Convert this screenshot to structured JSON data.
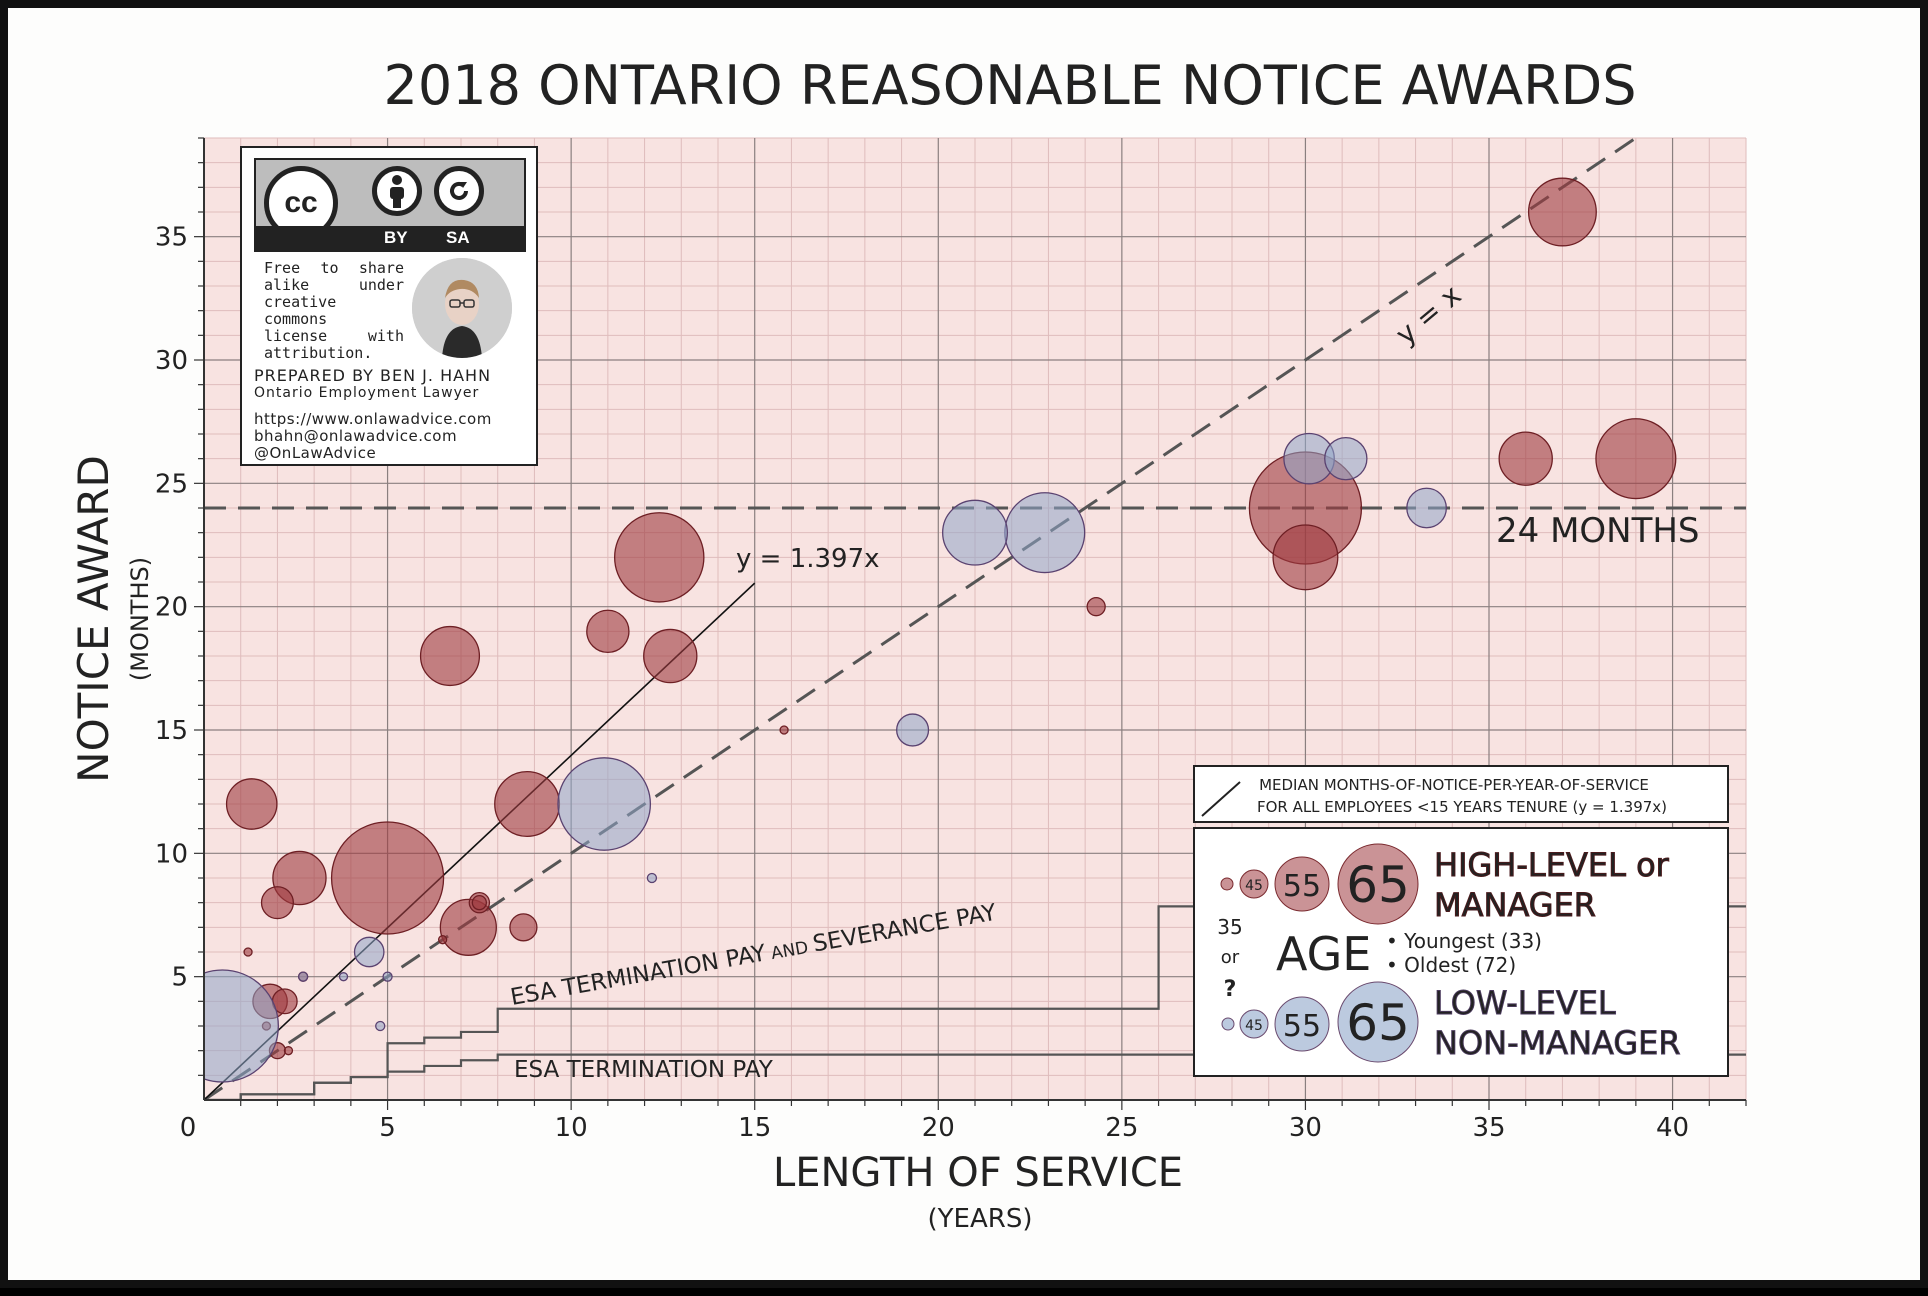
{
  "title": "2018 ONTARIO REASONABLE NOTICE AWARDS",
  "license": {
    "cc_label": "cc",
    "by_label": "BY",
    "sa_label": "SA",
    "notice_lines": [
      "Free to share",
      "alike under",
      "creative",
      "commons",
      "license with",
      "attribution."
    ],
    "prepared_by": "PREPARED BY BEN J. HAHN",
    "role": "Ontario Employment Lawyer",
    "website": "https://www.onlawadvice.com",
    "email": "bhahn@onlawadvice.com",
    "handle": "@OnLawAdvice"
  },
  "annotations": {
    "yx": "y = x",
    "y1397": "y = 1.397x",
    "months24": "24 MONTHS",
    "esa_sev_a": "ESA TERMINATION PAY",
    "esa_sev_b": " AND ",
    "esa_sev_c": "SEVERANCE PAY",
    "esa_term": "ESA TERMINATION PAY"
  },
  "median_legend": {
    "line1": "MEDIAN MONTHS-OF-NOTICE-PER-YEAR-OF-SERVICE",
    "line2": "FOR ALL EMPLOYEES <15 YEARS TENURE (y = 1.397x)"
  },
  "legend": {
    "high_line1": "HIGH-LEVEL or",
    "high_line2": "MANAGER",
    "low_line1": "LOW-LEVEL",
    "low_line2": "NON-MANAGER",
    "age_label": "AGE",
    "youngest": "• Youngest (33)",
    "oldest": "• Oldest (72)",
    "q_35": "35",
    "q_or": "or",
    "q_mark": "?",
    "sizes": [
      "35",
      "45",
      "55",
      "65"
    ]
  },
  "colors": {
    "high": "#9e3a3f",
    "low": "#8fa6c9",
    "plot_bg": "#f8e3e1",
    "grid_minor": "#dfbcbc",
    "grid_major": "#8a7f7f"
  },
  "chart_data": {
    "type": "scatter",
    "title": "2018 ONTARIO REASONABLE NOTICE AWARDS",
    "xlabel": "LENGTH OF SERVICE",
    "xlabel_units": "(YEARS)",
    "ylabel": "NOTICE AWARD",
    "ylabel_units": "(MONTHS)",
    "xlim": [
      0,
      42
    ],
    "ylim": [
      0,
      39
    ],
    "xticks": [
      0,
      5,
      10,
      15,
      20,
      25,
      30,
      35,
      40
    ],
    "yticks": [
      5,
      10,
      15,
      20,
      25,
      30,
      35
    ],
    "reference_lines": [
      {
        "name": "y = x",
        "slope": 1,
        "style": "dashed"
      },
      {
        "name": "y = 1.397x",
        "slope": 1.397,
        "x_max": 15,
        "style": "solid"
      },
      {
        "name": "24 MONTHS",
        "y": 24,
        "style": "dashed"
      }
    ],
    "step_series": [
      {
        "name": "ESA TERMINATION PAY AND SEVERANCE PAY",
        "points": [
          [
            0,
            0
          ],
          [
            1,
            0.23
          ],
          [
            3,
            0.7
          ],
          [
            4,
            0.93
          ],
          [
            5,
            1.15
          ],
          [
            5,
            2.3
          ],
          [
            6,
            2.53
          ],
          [
            7,
            2.76
          ],
          [
            8,
            3.7
          ],
          [
            26,
            7.85
          ],
          [
            42,
            7.85
          ]
        ]
      },
      {
        "name": "ESA TERMINATION PAY",
        "points": [
          [
            0,
            0
          ],
          [
            1,
            0.23
          ],
          [
            3,
            0.7
          ],
          [
            4,
            0.93
          ],
          [
            5,
            1.15
          ],
          [
            6,
            1.38
          ],
          [
            7,
            1.61
          ],
          [
            8,
            1.84
          ],
          [
            42,
            1.84
          ]
        ]
      }
    ],
    "series": [
      {
        "name": "HIGH-LEVEL or MANAGER",
        "points": [
          {
            "x": 1.3,
            "y": 12,
            "age": 52
          },
          {
            "x": 2.0,
            "y": 8,
            "age": 45
          },
          {
            "x": 2.6,
            "y": 9,
            "age": 53
          },
          {
            "x": 1.8,
            "y": 4,
            "age": 46
          },
          {
            "x": 2.2,
            "y": 4,
            "age": 42
          },
          {
            "x": 1.7,
            "y": 3,
            "age": 33
          },
          {
            "x": 2.0,
            "y": 2,
            "age": 38
          },
          {
            "x": 1.2,
            "y": 6,
            "age": 33
          },
          {
            "x": 2.7,
            "y": 5,
            "age": 34
          },
          {
            "x": 2.3,
            "y": 2,
            "age": 33
          },
          {
            "x": 5.0,
            "y": 9,
            "age": 72
          },
          {
            "x": 6.7,
            "y": 18,
            "age": 55
          },
          {
            "x": 7.2,
            "y": 7,
            "age": 54
          },
          {
            "x": 7.5,
            "y": 8,
            "age": 40
          },
          {
            "x": 7.5,
            "y": 8,
            "age": 37
          },
          {
            "x": 6.5,
            "y": 6.5,
            "age": 33
          },
          {
            "x": 8.7,
            "y": 7,
            "age": 43
          },
          {
            "x": 8.8,
            "y": 12,
            "age": 57
          },
          {
            "x": 11.0,
            "y": 19,
            "age": 49
          },
          {
            "x": 12.4,
            "y": 22,
            "age": 65
          },
          {
            "x": 12.7,
            "y": 18,
            "age": 53
          },
          {
            "x": 15.8,
            "y": 15,
            "age": 33
          },
          {
            "x": 24.3,
            "y": 20,
            "age": 39
          },
          {
            "x": 30.0,
            "y": 24,
            "age": 72
          },
          {
            "x": 30.0,
            "y": 22,
            "age": 57
          },
          {
            "x": 36.0,
            "y": 26,
            "age": 53
          },
          {
            "x": 37.0,
            "y": 36,
            "age": 58
          },
          {
            "x": 39.0,
            "y": 26,
            "age": 62
          }
        ]
      },
      {
        "name": "LOW-LEVEL NON-MANAGER",
        "points": [
          {
            "x": 0.5,
            "y": 3,
            "age": 72
          },
          {
            "x": 2.7,
            "y": 5,
            "age": 34
          },
          {
            "x": 4.5,
            "y": 6,
            "age": 44
          },
          {
            "x": 4.8,
            "y": 3,
            "age": 34
          },
          {
            "x": 5.0,
            "y": 5,
            "age": 34
          },
          {
            "x": 3.8,
            "y": 5,
            "age": 33
          },
          {
            "x": 10.9,
            "y": 12,
            "age": 66
          },
          {
            "x": 12.2,
            "y": 9,
            "age": 34
          },
          {
            "x": 19.3,
            "y": 15,
            "age": 45
          },
          {
            "x": 21.0,
            "y": 23,
            "age": 57
          },
          {
            "x": 22.9,
            "y": 23,
            "age": 62
          },
          {
            "x": 30.1,
            "y": 26,
            "age": 52
          },
          {
            "x": 31.1,
            "y": 26,
            "age": 49
          },
          {
            "x": 33.3,
            "y": 24,
            "age": 48
          }
        ]
      }
    ]
  }
}
